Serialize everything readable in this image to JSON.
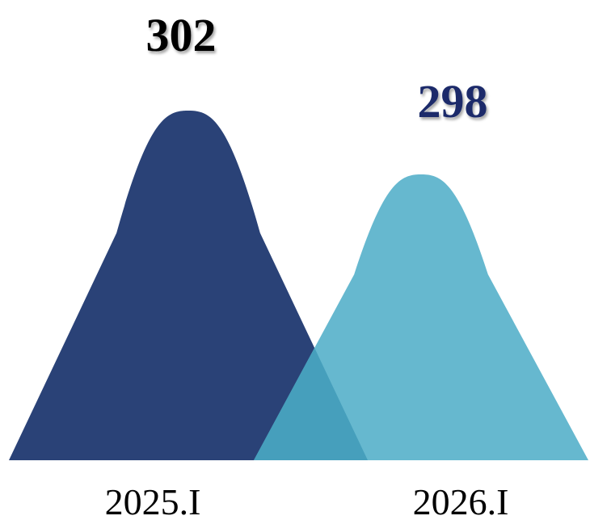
{
  "chart_data": {
    "type": "area",
    "categories": [
      "2025.I",
      "2026.I"
    ],
    "values": [
      302,
      298
    ],
    "value_labels": [
      "302",
      "298"
    ],
    "colors": {
      "peak": [
        "#2a4277",
        "#66b8cf"
      ],
      "overlap": "#469fbc",
      "value_label": [
        "#000000",
        "#1a2c6b"
      ]
    },
    "legend": "none",
    "grid": false
  }
}
